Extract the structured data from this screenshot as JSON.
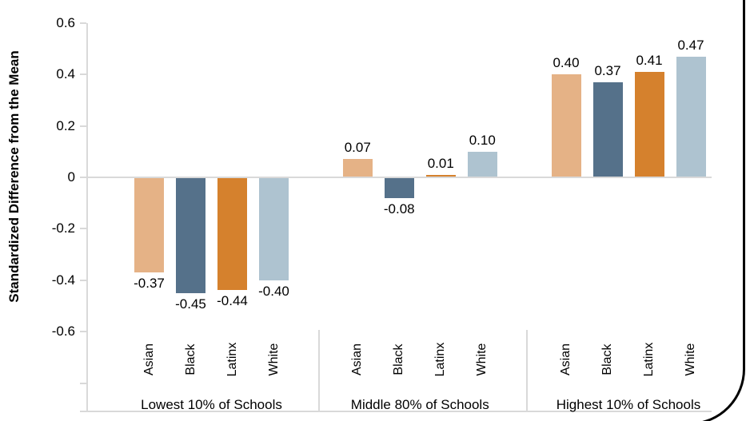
{
  "chart_data": {
    "type": "bar",
    "title": "",
    "ylabel": "Standardized Difference from the Mean",
    "xlabel": "",
    "ylim": [
      -0.6,
      0.6
    ],
    "yticks": [
      0.6,
      0.4,
      0.2,
      0,
      -0.2,
      -0.4,
      -0.6
    ],
    "ytick_labels": [
      "0.6",
      "0.4",
      "0.2",
      "0",
      "-0.2",
      "-0.4",
      "-0.6"
    ],
    "grid": "off",
    "legend": "none",
    "categories": [
      "Asian",
      "Black",
      "Latinx",
      "White"
    ],
    "groups": [
      {
        "label": "Lowest 10% of Schools",
        "values": [
          -0.37,
          -0.45,
          -0.44,
          -0.4
        ],
        "value_labels": [
          "-0.37",
          "-0.45",
          "-0.44",
          "-0.40"
        ]
      },
      {
        "label": "Middle 80% of Schools",
        "values": [
          0.07,
          -0.08,
          0.01,
          0.1
        ],
        "value_labels": [
          "0.07",
          "-0.08",
          "0.01",
          "0.10"
        ]
      },
      {
        "label": "Highest 10% of Schools",
        "values": [
          0.4,
          0.37,
          0.41,
          0.47
        ],
        "value_labels": [
          "0.40",
          "0.37",
          "0.41",
          "0.47"
        ]
      }
    ],
    "bar_colors": {
      "Asian": "#e5b286",
      "Black": "#55718a",
      "Latinx": "#d5812d",
      "White": "#aec3d0"
    }
  },
  "colors": {
    "axis_line": "#d9d9d9",
    "text": "#000000",
    "frame_border": "#000000",
    "background": "#ffffff"
  }
}
